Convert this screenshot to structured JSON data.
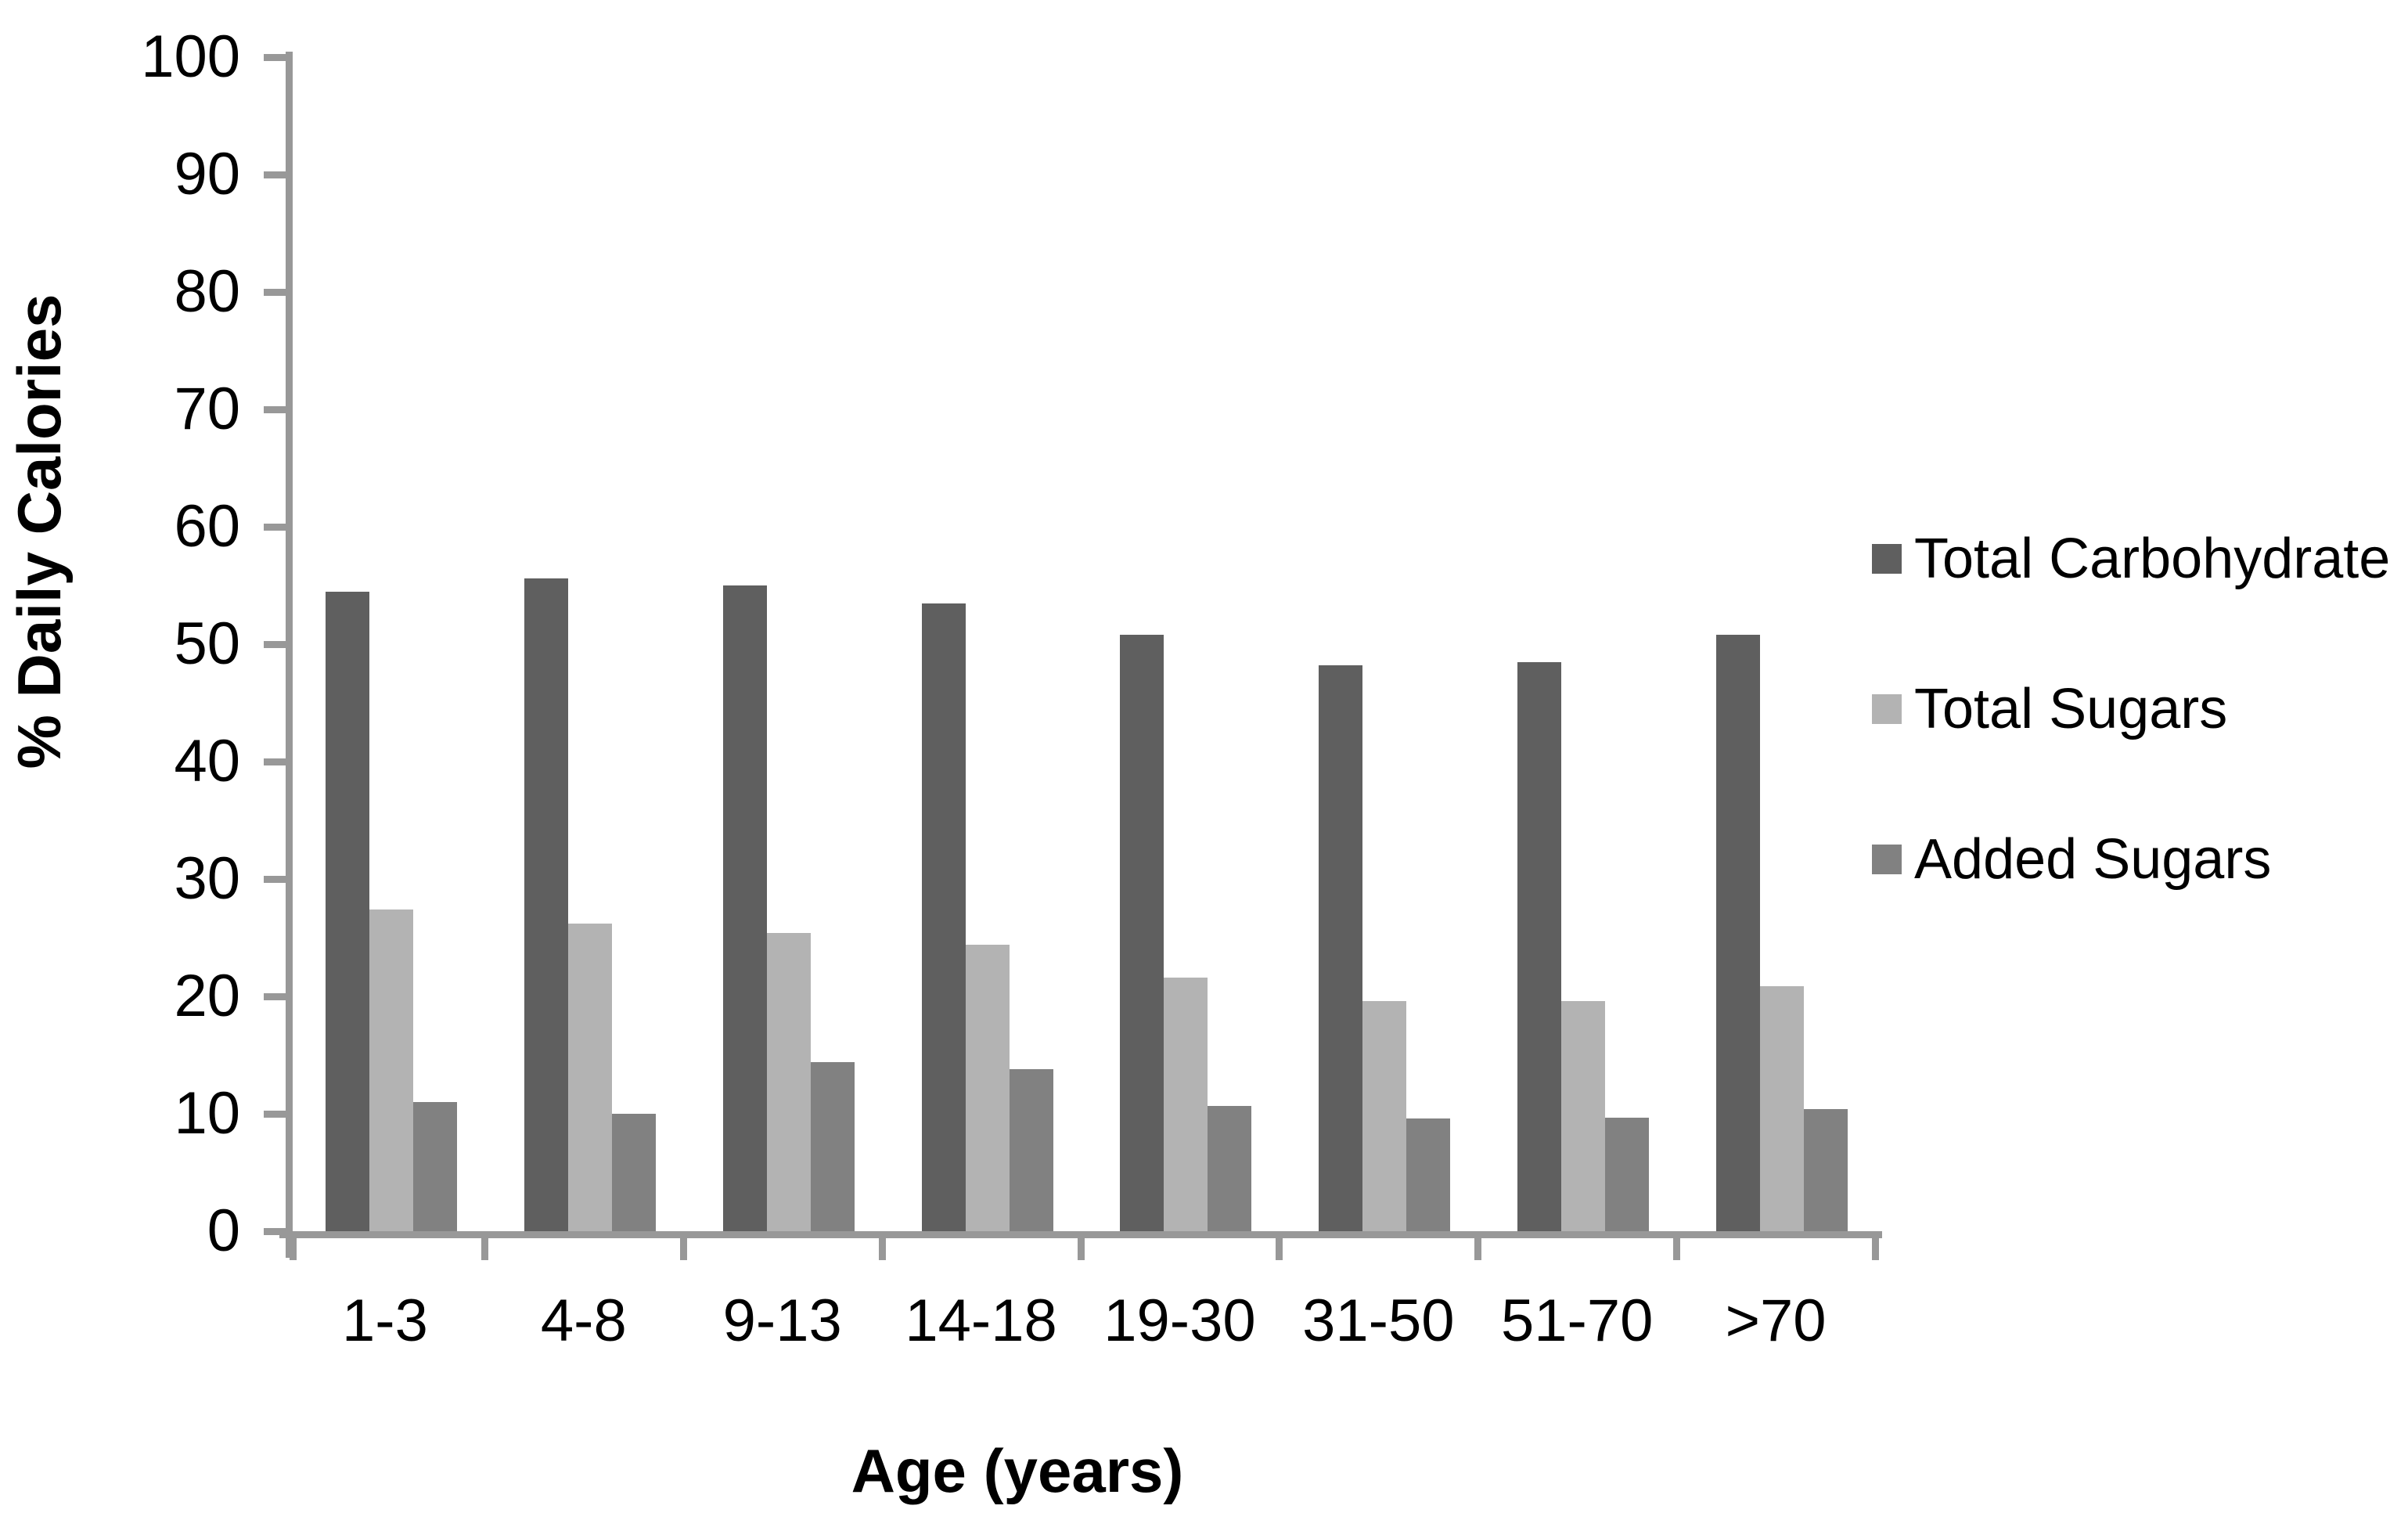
{
  "chart_data": {
    "type": "bar",
    "categories": [
      "1-3",
      "4-8",
      "9-13",
      "14-18",
      "19-30",
      "31-50",
      "51-70",
      ">70"
    ],
    "series": [
      {
        "name": "Total Carbohydrate",
        "color": "#5f5f5f",
        "values": [
          54.5,
          55.6,
          55.0,
          53.5,
          50.8,
          48.2,
          48.5,
          50.8
        ]
      },
      {
        "name": "Total Sugars",
        "color": "#b3b3b3",
        "values": [
          27.4,
          26.2,
          25.4,
          24.4,
          21.6,
          19.6,
          19.6,
          20.9
        ]
      },
      {
        "name": "Added Sugars",
        "color": "#818181",
        "values": [
          11.0,
          10.0,
          14.4,
          13.8,
          10.7,
          9.6,
          9.7,
          10.4
        ]
      }
    ],
    "title": "",
    "xlabel": "Age (years)",
    "ylabel": "% Daily Calories",
    "ylim": [
      0,
      100
    ],
    "ytick_step": 10,
    "yticks": [
      "0",
      "10",
      "20",
      "30",
      "40",
      "50",
      "60",
      "70",
      "80",
      "90",
      "100"
    ],
    "grid": "off",
    "legend_position": "right",
    "axis_color": "#989898",
    "text_color": "#000000",
    "background_color": "#ffffff"
  }
}
